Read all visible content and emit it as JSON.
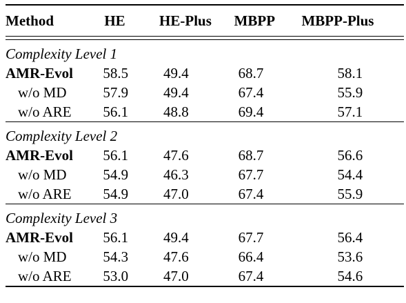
{
  "table": {
    "headers": [
      "Method",
      "HE",
      "HE-Plus",
      "MBPP",
      "MBPP-Plus"
    ],
    "groups": [
      {
        "label": "Complexity Level 1",
        "rows": [
          {
            "method": "AMR-Evol",
            "bold": true,
            "values": [
              "58.5",
              "49.4",
              "68.7",
              "58.1"
            ]
          },
          {
            "method": "w/o MD",
            "bold": false,
            "values": [
              "57.9",
              "49.4",
              "67.4",
              "55.9"
            ]
          },
          {
            "method": "w/o ARE",
            "bold": false,
            "values": [
              "56.1",
              "48.8",
              "69.4",
              "57.1"
            ]
          }
        ]
      },
      {
        "label": "Complexity Level 2",
        "rows": [
          {
            "method": "AMR-Evol",
            "bold": true,
            "values": [
              "56.1",
              "47.6",
              "68.7",
              "56.6"
            ]
          },
          {
            "method": "w/o MD",
            "bold": false,
            "values": [
              "54.9",
              "46.3",
              "67.7",
              "54.4"
            ]
          },
          {
            "method": "w/o ARE",
            "bold": false,
            "values": [
              "54.9",
              "47.0",
              "67.4",
              "55.9"
            ]
          }
        ]
      },
      {
        "label": "Complexity Level 3",
        "rows": [
          {
            "method": "AMR-Evol",
            "bold": true,
            "values": [
              "56.1",
              "49.4",
              "67.7",
              "56.4"
            ]
          },
          {
            "method": "w/o MD",
            "bold": false,
            "values": [
              "54.3",
              "47.6",
              "66.4",
              "53.6"
            ]
          },
          {
            "method": "w/o ARE",
            "bold": false,
            "values": [
              "53.0",
              "47.0",
              "67.4",
              "54.6"
            ]
          }
        ]
      }
    ]
  }
}
